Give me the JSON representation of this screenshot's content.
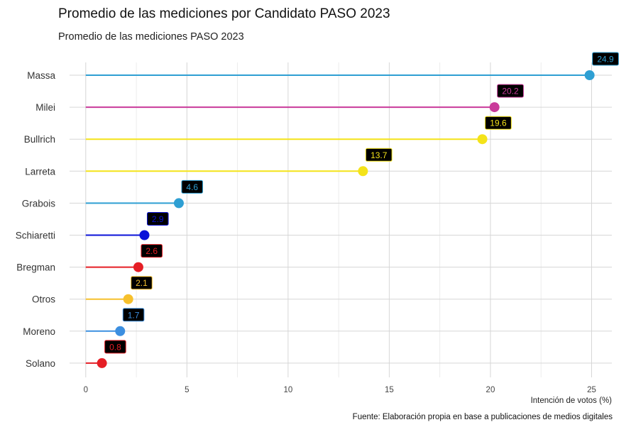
{
  "title": "Promedio de las mediciones por Candidato PASO 2023",
  "subtitle": "Promedio de las mediciones PASO 2023",
  "caption": "Fuente: Elaboración propia en base a publicaciones de medios digitales",
  "chart_data": {
    "type": "lollipop",
    "orientation": "horizontal",
    "xlabel": "Intención de votos (%)",
    "ylabel": "",
    "xlim": [
      -0.8,
      26
    ],
    "xticks": [
      0,
      5,
      10,
      15,
      20,
      25
    ],
    "grid": true,
    "categories": [
      "Massa",
      "Milei",
      "Bullrich",
      "Larreta",
      "Grabois",
      "Schiaretti",
      "Bregman",
      "Otros",
      "Moreno",
      "Solano"
    ],
    "values": [
      24.9,
      20.2,
      19.6,
      13.7,
      4.6,
      2.9,
      2.6,
      2.1,
      1.7,
      0.8
    ],
    "value_labels": [
      "24.9",
      "20.2",
      "19.6",
      "13.7",
      "4.6",
      "2.9",
      "2.6",
      "2.1",
      "1.7",
      "0.8"
    ],
    "colors": [
      "#2E9FD3",
      "#C93A9A",
      "#F4E319",
      "#F4E319",
      "#2E9FD3",
      "#0A12D8",
      "#E51E25",
      "#F6C02D",
      "#3C8FE0",
      "#E51E25"
    ],
    "label_text_colors": [
      "#2E9FD3",
      "#C93A9A",
      "#F4E319",
      "#F4E319",
      "#2E9FD3",
      "#0A12D8",
      "#E51E25",
      "#F6C02D",
      "#3C8FE0",
      "#E51E25"
    ]
  }
}
